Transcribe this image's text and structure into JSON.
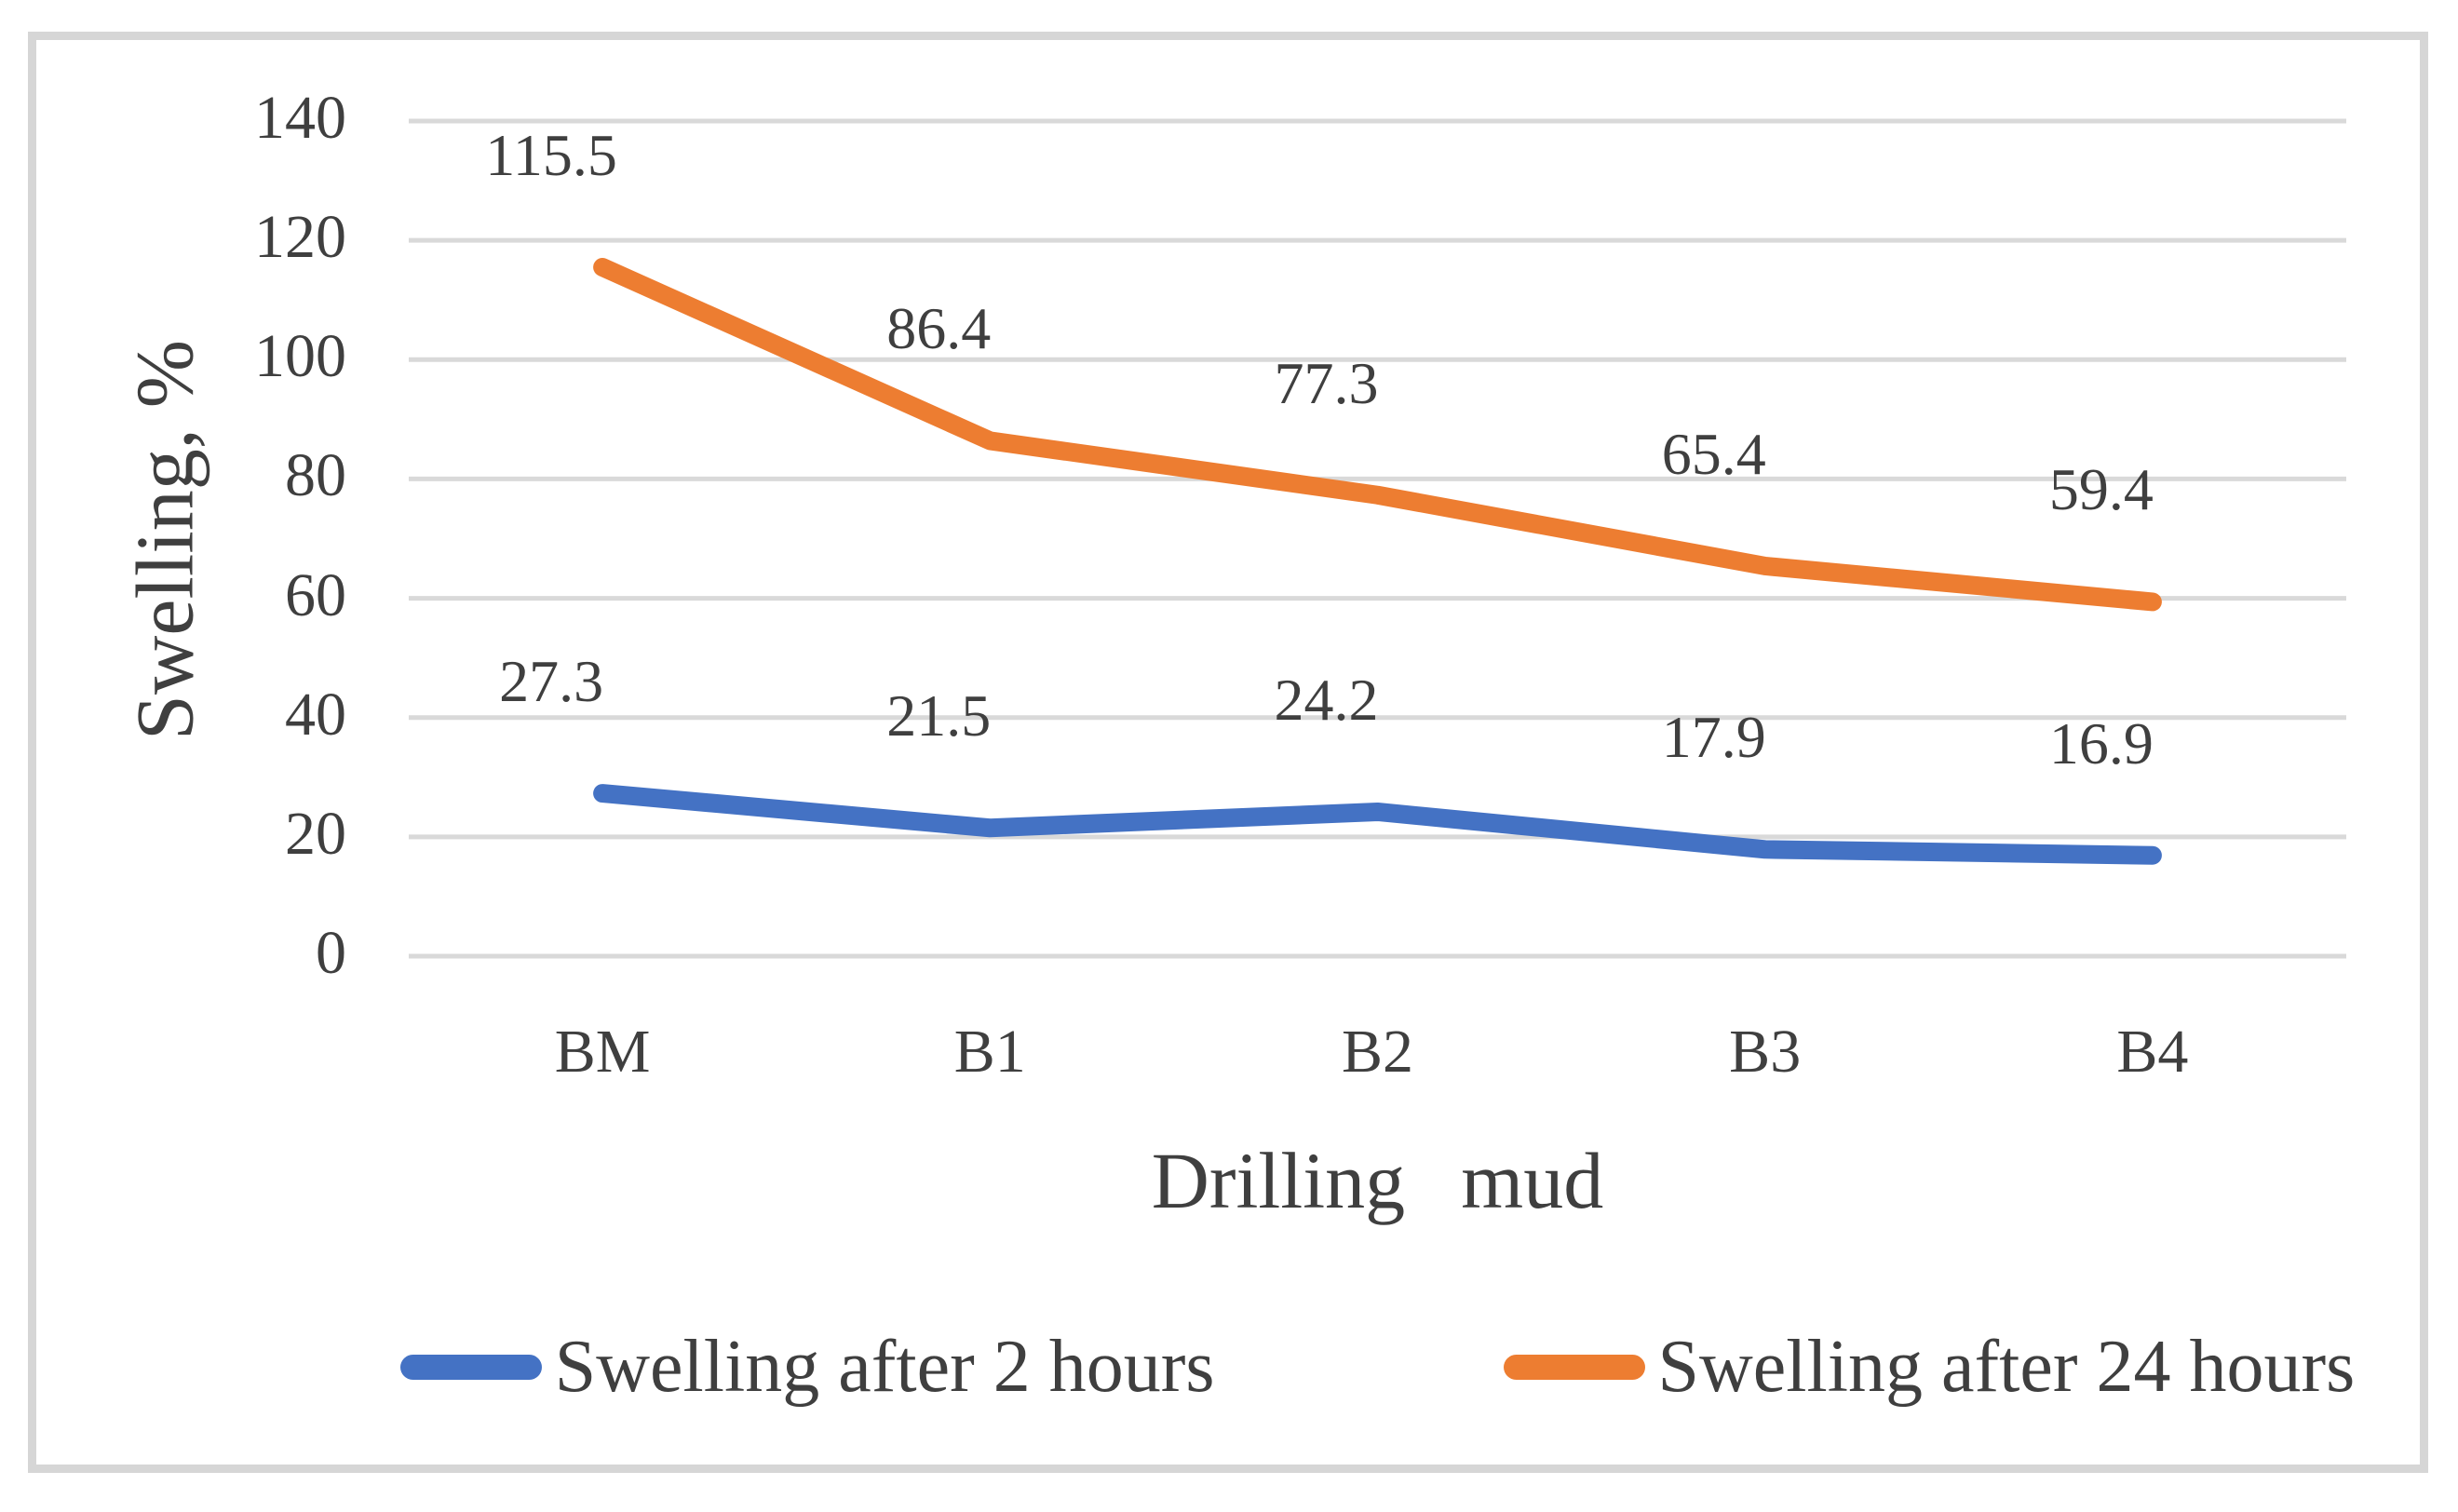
{
  "chart_data": {
    "type": "line",
    "categories": [
      "BM",
      "B1",
      "B2",
      "B3",
      "B4"
    ],
    "series": [
      {
        "name": "Swelling after 2 hours",
        "color": "#4472C4",
        "values": [
          27.3,
          21.5,
          24.2,
          17.9,
          16.9
        ]
      },
      {
        "name": "Swelling after 24 hours",
        "color": "#ED7D31",
        "values": [
          115.5,
          86.4,
          77.3,
          65.4,
          59.4
        ]
      }
    ],
    "xlabel": "Drilling mud",
    "ylabel": "Swelling, %",
    "ylim": [
      0,
      140
    ],
    "yticks": [
      0,
      20,
      40,
      60,
      80,
      100,
      120,
      140
    ],
    "grid": true,
    "data_labels": true,
    "legend_position": "bottom"
  },
  "colors": {
    "gridline": "#D9D9D9",
    "frame_border": "#D6D6D6",
    "text": "#3F3F3F",
    "background": "#FFFFFF"
  }
}
